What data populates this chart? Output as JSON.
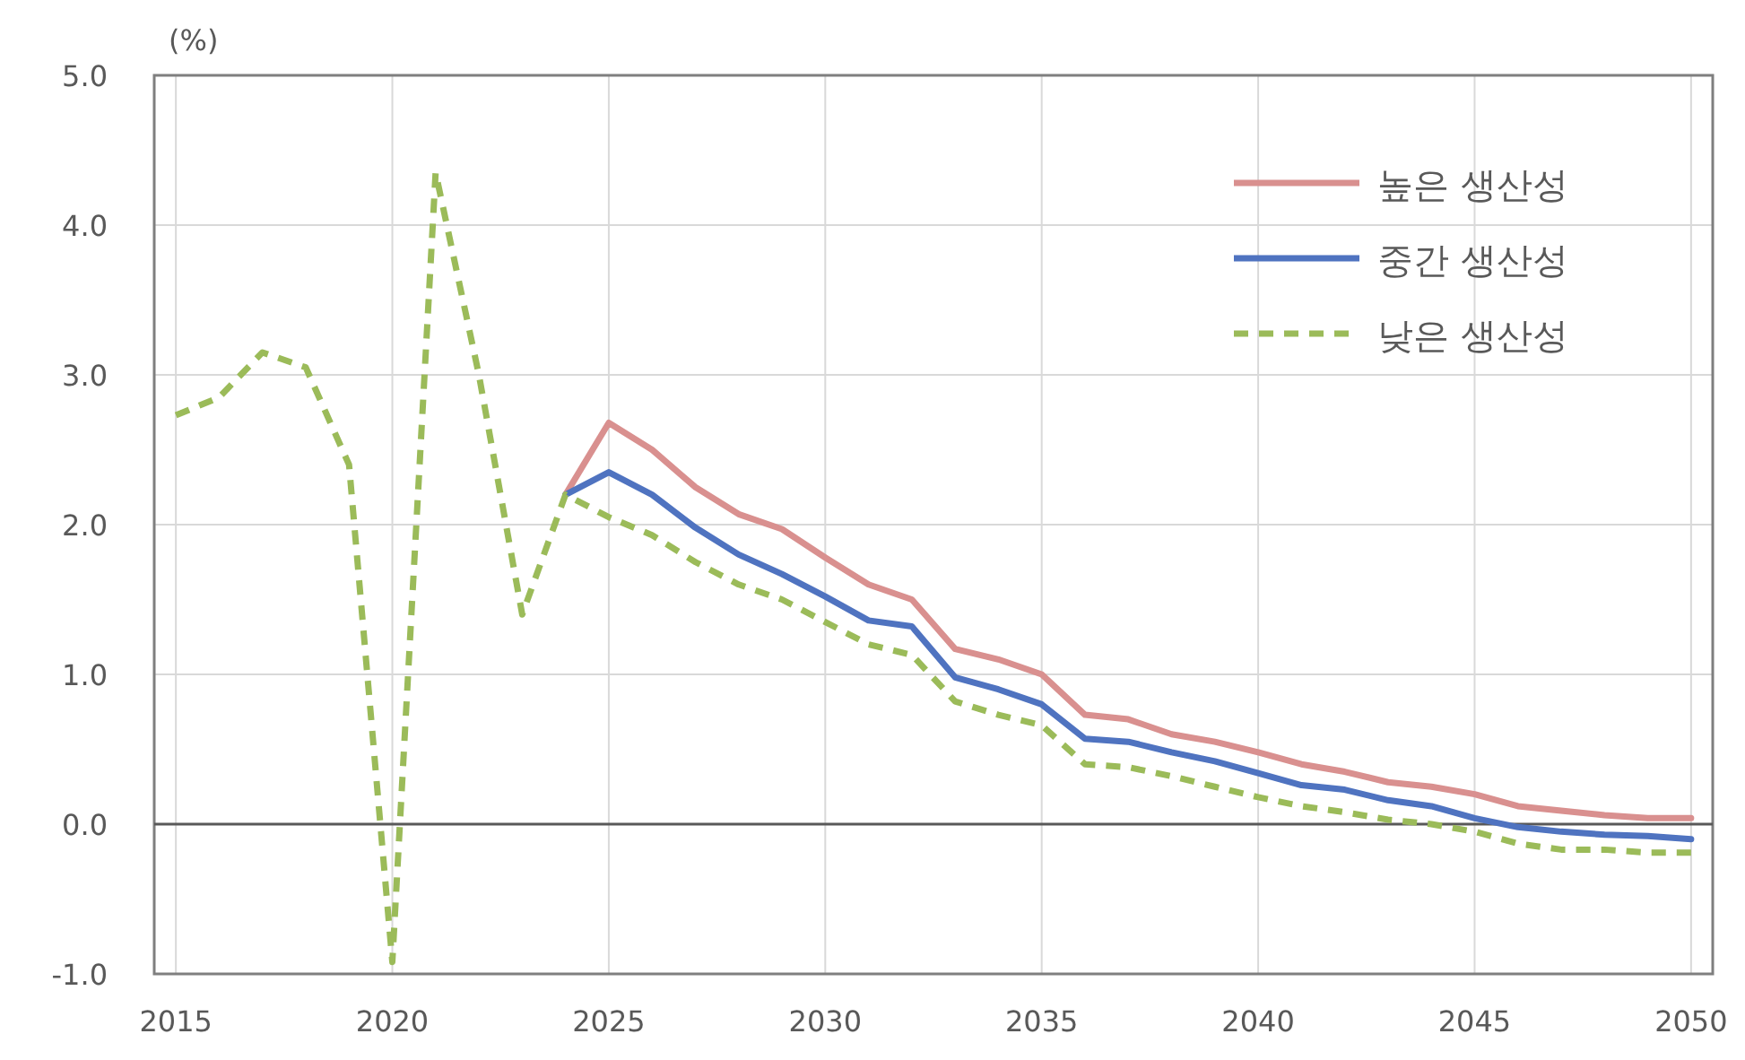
{
  "chart_data": {
    "type": "line",
    "ylabel": "(%)",
    "x": [
      2015,
      2016,
      2017,
      2018,
      2019,
      2020,
      2021,
      2022,
      2023,
      2024,
      2025,
      2026,
      2027,
      2028,
      2029,
      2030,
      2031,
      2032,
      2033,
      2034,
      2035,
      2036,
      2037,
      2038,
      2039,
      2040,
      2041,
      2042,
      2043,
      2044,
      2045,
      2046,
      2047,
      2048,
      2049,
      2050
    ],
    "xlim": [
      2014.5,
      2050.5
    ],
    "xticks": [
      2015,
      2020,
      2025,
      2030,
      2035,
      2040,
      2045,
      2050
    ],
    "ylim": [
      -1,
      5
    ],
    "yticks": [
      {
        "value": -1,
        "label": "-1.0"
      },
      {
        "value": 0,
        "label": "0.0"
      },
      {
        "value": 1,
        "label": "1.0"
      },
      {
        "value": 2,
        "label": "2.0"
      },
      {
        "value": 3,
        "label": "3.0"
      },
      {
        "value": 4,
        "label": "4.0"
      },
      {
        "value": 5,
        "label": "5.0"
      }
    ],
    "grid": true,
    "legend": "top right",
    "marker": "none",
    "series": [
      {
        "name": "높은 생산성",
        "color": "#d9908f",
        "line_style": "solid",
        "values": [
          null,
          null,
          null,
          null,
          null,
          null,
          null,
          null,
          null,
          2.2,
          2.68,
          2.5,
          2.25,
          2.07,
          1.97,
          1.78,
          1.6,
          1.5,
          1.17,
          1.1,
          1.0,
          0.73,
          0.7,
          0.6,
          0.55,
          0.48,
          0.4,
          0.35,
          0.28,
          0.25,
          0.2,
          0.12,
          0.09,
          0.06,
          0.04,
          0.04
        ]
      },
      {
        "name": "중간 생산성",
        "color": "#4f73c0",
        "line_style": "solid",
        "values": [
          null,
          null,
          null,
          null,
          null,
          null,
          null,
          null,
          null,
          2.2,
          2.35,
          2.2,
          1.98,
          1.8,
          1.67,
          1.52,
          1.36,
          1.32,
          0.98,
          0.9,
          0.8,
          0.57,
          0.55,
          0.48,
          0.42,
          0.34,
          0.26,
          0.23,
          0.16,
          0.12,
          0.04,
          -0.02,
          -0.05,
          -0.07,
          -0.08,
          -0.1
        ]
      },
      {
        "name": "낮은 생산성",
        "color": "#9bbb59",
        "line_style": "dashed",
        "values": [
          2.73,
          2.85,
          3.15,
          3.05,
          2.4,
          -0.92,
          4.35,
          3.0,
          1.4,
          2.2,
          2.05,
          1.93,
          1.75,
          1.6,
          1.5,
          1.35,
          1.2,
          1.13,
          0.82,
          0.73,
          0.66,
          0.4,
          0.38,
          0.32,
          0.25,
          0.18,
          0.12,
          0.08,
          0.03,
          0.0,
          -0.05,
          -0.13,
          -0.17,
          -0.17,
          -0.19,
          -0.19
        ]
      }
    ]
  }
}
